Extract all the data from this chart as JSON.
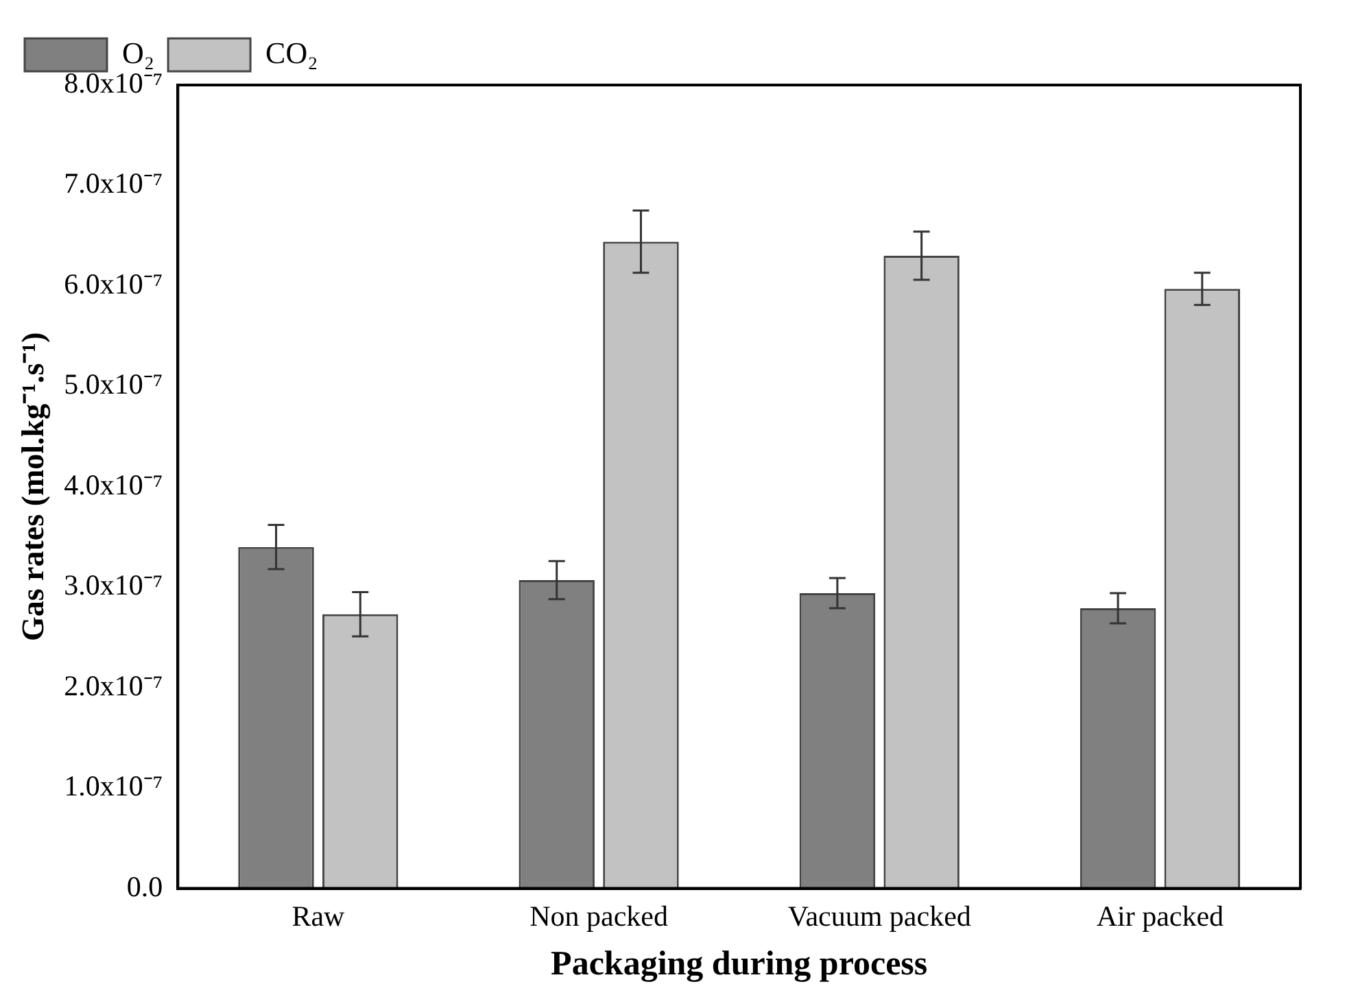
{
  "chart_data": {
    "type": "bar",
    "xlabel": "Packaging during process",
    "ylabel": "Gas rates (mol.kg⁻¹.s⁻¹)",
    "categories": [
      "Raw",
      "Non packed",
      "Vacuum packed",
      "Air packed"
    ],
    "series": [
      {
        "name": "O₂",
        "color": "#808080",
        "values": [
          3.4e-07,
          3.07e-07,
          2.94e-07,
          2.79e-07
        ],
        "errors": [
          2.2e-08,
          1.9e-08,
          1.5e-08,
          1.5e-08
        ]
      },
      {
        "name": "CO₂",
        "color": "#c2c2c2",
        "values": [
          2.73e-07,
          6.44e-07,
          6.3e-07,
          5.97e-07
        ],
        "errors": [
          2.2e-08,
          3.1e-08,
          2.4e-08,
          1.6e-08
        ]
      }
    ],
    "ylim": [
      0,
      8e-07
    ],
    "yticks": [
      {
        "value": 0,
        "label": "0.0"
      },
      {
        "value": 1e-07,
        "label": "1.0x10⁻⁷"
      },
      {
        "value": 2e-07,
        "label": "2.0x10⁻⁷"
      },
      {
        "value": 3e-07,
        "label": "3.0x10⁻⁷"
      },
      {
        "value": 4e-07,
        "label": "4.0x10⁻⁷"
      },
      {
        "value": 5e-07,
        "label": "5.0x10⁻⁷"
      },
      {
        "value": 6e-07,
        "label": "6.0x10⁻⁷"
      },
      {
        "value": 7e-07,
        "label": "7.0x10⁻⁷"
      },
      {
        "value": 8e-07,
        "label": "8.0x10⁻⁷"
      }
    ],
    "legend": "top left",
    "grid": false
  }
}
